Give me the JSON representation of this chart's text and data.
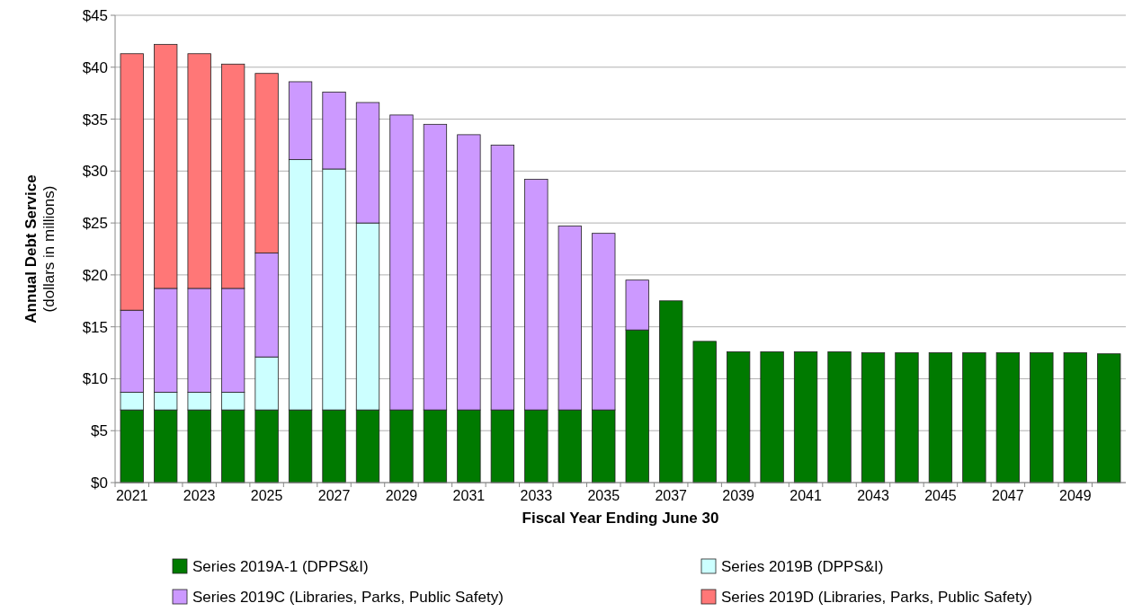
{
  "chart_data": {
    "type": "bar",
    "stacked": true,
    "xlabel": "Fiscal Year Ending June 30",
    "ylabel": "Annual Debt Service",
    "subtitle": "(dollars in millions)",
    "categories": [
      "2021",
      null,
      "2023",
      null,
      "2025",
      null,
      "2027",
      null,
      "2029",
      null,
      "2031",
      null,
      "2033",
      null,
      "2035",
      null,
      "2037",
      null,
      "2039",
      null,
      "2041",
      null,
      "2043",
      null,
      "2045",
      null,
      "2047",
      null,
      "2049",
      null
    ],
    "series": [
      {
        "name": "Series 2019A-1 (DPPS&I)",
        "color": "#007a00",
        "values": [
          7.0,
          7.0,
          7.0,
          7.0,
          7.0,
          7.0,
          7.0,
          7.0,
          7.0,
          7.0,
          7.0,
          7.0,
          7.0,
          7.0,
          7.0,
          14.7,
          17.5,
          13.6,
          12.6,
          12.6,
          12.6,
          12.6,
          12.5,
          12.5,
          12.5,
          12.5,
          12.5,
          12.5,
          12.5,
          12.4
        ]
      },
      {
        "name": "Series 2019B (DPPS&I)",
        "color": "#ccffff",
        "values": [
          1.7,
          1.7,
          1.7,
          1.7,
          5.1,
          24.1,
          23.2,
          18.0,
          null,
          null,
          null,
          null,
          null,
          null,
          null,
          null,
          null,
          null,
          null,
          null,
          null,
          null,
          null,
          null,
          null,
          null,
          null,
          null,
          null,
          null
        ]
      },
      {
        "name": "Series 2019C (Libraries, Parks, Public Safety)",
        "color": "#cc99ff",
        "values": [
          7.9,
          10.0,
          10.0,
          10.0,
          10.0,
          7.5,
          7.4,
          11.6,
          28.4,
          27.5,
          26.5,
          25.5,
          22.2,
          17.7,
          17.0,
          4.8,
          null,
          null,
          null,
          null,
          null,
          null,
          null,
          null,
          null,
          null,
          null,
          null,
          null,
          null
        ]
      },
      {
        "name": "Series 2019D (Libraries, Parks, Public Safety)",
        "color": "#ff7777",
        "values": [
          24.7,
          23.5,
          22.6,
          21.6,
          17.3,
          null,
          null,
          null,
          null,
          null,
          null,
          null,
          null,
          null,
          null,
          null,
          null,
          null,
          null,
          null,
          null,
          null,
          null,
          null,
          null,
          null,
          null,
          null,
          null,
          null
        ]
      }
    ],
    "ylim": [
      0,
      45
    ],
    "yticks": [
      {
        "value": 0,
        "label": "$0"
      },
      {
        "value": 5,
        "label": "$5"
      },
      {
        "value": 10,
        "label": "$10"
      },
      {
        "value": 15,
        "label": "$15"
      },
      {
        "value": 20,
        "label": "$20"
      },
      {
        "value": 25,
        "label": "$25"
      },
      {
        "value": 30,
        "label": "$30"
      },
      {
        "value": 35,
        "label": "$35"
      },
      {
        "value": 40,
        "label": "$40"
      },
      {
        "value": 45,
        "label": "$45"
      }
    ],
    "grid": "y",
    "legend": "bottom"
  }
}
